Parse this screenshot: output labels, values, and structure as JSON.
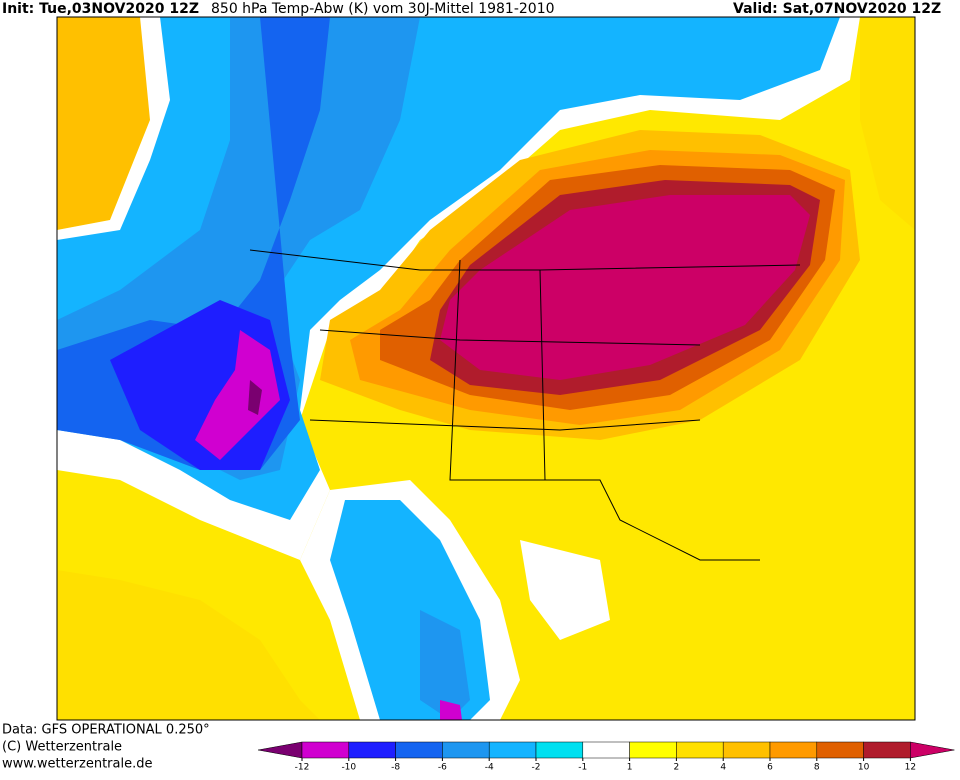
{
  "header": {
    "init": "Init: Tue,03NOV2020 12Z",
    "title": "850 hPa Temp-Abw (K) vom 30J-Mittel 1981-2010",
    "valid": "Valid: Sat,07NOV2020 12Z"
  },
  "footer": {
    "lines": [
      "Data: GFS OPERATIONAL 0.250°",
      "(C) Wetterzentrale",
      "www.wetterzentrale.de"
    ]
  },
  "colorbar": {
    "ticks": [
      -12,
      -10,
      -8,
      -6,
      -4,
      -2,
      -1,
      1,
      2,
      4,
      6,
      8,
      10,
      12
    ],
    "colors": [
      "#7a0070",
      "#d000d0",
      "#1e1eff",
      "#1464f0",
      "#1e96f0",
      "#14b4ff",
      "#00e0f0",
      "#ffffff",
      "#ffff00",
      "#ffe000",
      "#ffc000",
      "#ff9a00",
      "#e06000",
      "#b01c2c",
      "#cc0066"
    ]
  }
}
